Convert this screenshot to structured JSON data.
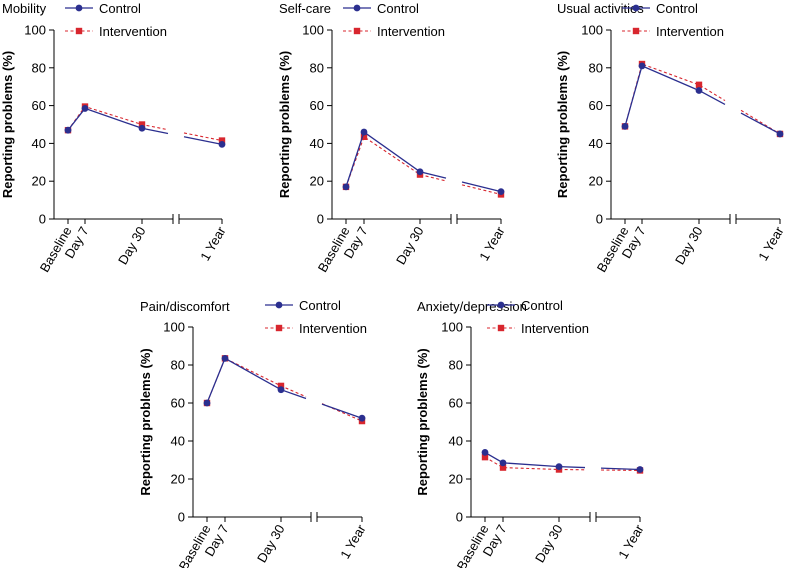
{
  "figure": {
    "legend_labels": [
      "Control",
      "Intervention"
    ],
    "y_axis_label": "Reporting problems (%)",
    "x_tick_labels": [
      "Baseline",
      "Day 7",
      "Day 30",
      "1 Year"
    ],
    "y_tick_labels": [
      "0",
      "20",
      "40",
      "60",
      "80",
      "100"
    ]
  },
  "colors": {
    "control": "#2b2f8f",
    "intervention": "#d8262e",
    "axis": "#000000"
  },
  "chart_data": [
    {
      "type": "line",
      "title": "Mobility",
      "xlabel": "",
      "ylabel": "Reporting problems (%)",
      "categories": [
        "Baseline",
        "Day 7",
        "Day 30",
        "1 Year"
      ],
      "ylim": [
        0,
        100
      ],
      "legend": "top-right",
      "axis_break": "between Day 30 and 1 Year",
      "series": [
        {
          "name": "Control",
          "values": [
            47,
            58.5,
            48,
            39.5
          ]
        },
        {
          "name": "Intervention",
          "values": [
            47,
            59.5,
            50,
            41.5
          ]
        }
      ]
    },
    {
      "type": "line",
      "title": "Self-care",
      "xlabel": "",
      "ylabel": "Reporting problems (%)",
      "categories": [
        "Baseline",
        "Day 7",
        "Day 30",
        "1 Year"
      ],
      "ylim": [
        0,
        100
      ],
      "legend": "top-right",
      "axis_break": "between Day 30 and 1 Year",
      "series": [
        {
          "name": "Control",
          "values": [
            17,
            46,
            25,
            14.5
          ]
        },
        {
          "name": "Intervention",
          "values": [
            17,
            43.5,
            23.5,
            13
          ]
        }
      ]
    },
    {
      "type": "line",
      "title": "Usual activities",
      "xlabel": "",
      "ylabel": "Reporting problems (%)",
      "categories": [
        "Baseline",
        "Day 7",
        "Day 30",
        "1 Year"
      ],
      "ylim": [
        0,
        100
      ],
      "legend": "top-right",
      "axis_break": "between Day 30 and 1 Year",
      "series": [
        {
          "name": "Control",
          "values": [
            49,
            81,
            68,
            45
          ]
        },
        {
          "name": "Intervention",
          "values": [
            49,
            82,
            71,
            45
          ]
        }
      ]
    },
    {
      "type": "line",
      "title": "Pain/discomfort",
      "xlabel": "",
      "ylabel": "Reporting problems (%)",
      "categories": [
        "Baseline",
        "Day 7",
        "Day 30",
        "1 Year"
      ],
      "ylim": [
        0,
        100
      ],
      "legend": "top-right",
      "axis_break": "between Day 30 and 1 Year",
      "series": [
        {
          "name": "Control",
          "values": [
            60,
            83.5,
            67,
            52
          ]
        },
        {
          "name": "Intervention",
          "values": [
            60,
            83.5,
            69,
            50.5
          ]
        }
      ]
    },
    {
      "type": "line",
      "title": "Anxiety/depression",
      "xlabel": "",
      "ylabel": "Reporting problems (%)",
      "categories": [
        "Baseline",
        "Day 7",
        "Day 30",
        "1 Year"
      ],
      "ylim": [
        0,
        100
      ],
      "legend": "top-right",
      "axis_break": "between Day 30 and 1 Year",
      "series": [
        {
          "name": "Control",
          "values": [
            34,
            28.5,
            26.5,
            25
          ]
        },
        {
          "name": "Intervention",
          "values": [
            31.5,
            26,
            25,
            24.5
          ]
        }
      ]
    }
  ]
}
